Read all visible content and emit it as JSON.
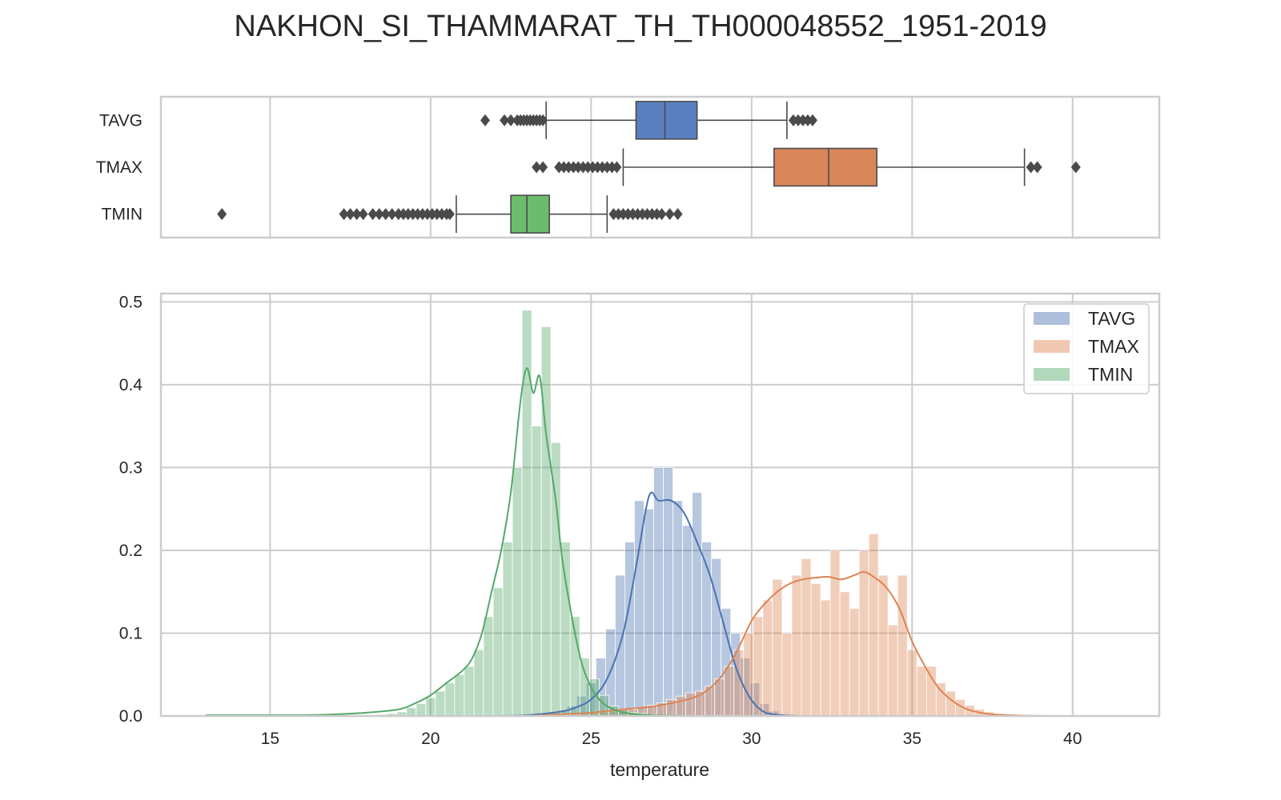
{
  "title": "NAKHON_SI_THAMMARAT_TH_TH000048552_1951-2019",
  "colors": {
    "TAVG": "#4c72b0",
    "TMAX": "#dd8452",
    "TMIN": "#55a868",
    "TAVG_box": "#5a7fc1",
    "TMAX_box": "#d9865a",
    "TMIN_box": "#6bbd6b",
    "grid": "#cccccc",
    "whisker": "#4a4a4a"
  },
  "chart_data": [
    {
      "type": "box",
      "categories": [
        "TAVG",
        "TMAX",
        "TMIN"
      ],
      "xlim": [
        11.6,
        42.7
      ],
      "grid": true,
      "boxes": [
        {
          "name": "TAVG",
          "q1": 26.4,
          "median": 27.3,
          "q3": 28.3,
          "whisker_low": 23.6,
          "whisker_high": 31.1,
          "outliers": [
            21.7,
            22.3,
            22.5,
            22.7,
            22.8,
            22.9,
            23.0,
            23.1,
            23.2,
            23.3,
            23.4,
            23.5,
            31.3,
            31.45,
            31.6,
            31.75,
            31.9
          ]
        },
        {
          "name": "TMAX",
          "q1": 30.7,
          "median": 32.4,
          "q3": 33.9,
          "whisker_low": 26.0,
          "whisker_high": 38.5,
          "outliers": [
            23.3,
            23.5,
            24.0,
            24.15,
            24.3,
            24.45,
            24.6,
            24.75,
            24.9,
            25.05,
            25.2,
            25.35,
            25.5,
            25.65,
            25.8,
            38.7,
            38.9,
            40.1
          ]
        },
        {
          "name": "TMIN",
          "q1": 22.5,
          "median": 23.0,
          "q3": 23.7,
          "whisker_low": 20.8,
          "whisker_high": 25.5,
          "outliers": [
            13.5,
            17.3,
            17.5,
            17.7,
            17.9,
            18.2,
            18.4,
            18.6,
            18.8,
            19.0,
            19.15,
            19.3,
            19.45,
            19.6,
            19.75,
            19.9,
            20.05,
            20.2,
            20.35,
            20.5,
            20.6,
            25.7,
            25.85,
            26.0,
            26.15,
            26.3,
            26.45,
            26.6,
            26.75,
            26.9,
            27.05,
            27.2,
            27.45,
            27.7
          ]
        }
      ]
    },
    {
      "type": "histogram",
      "xlabel": "temperature",
      "xlim": [
        11.6,
        42.7
      ],
      "ylim": [
        0,
        0.51
      ],
      "x_ticks": [
        15,
        20,
        25,
        30,
        35,
        40
      ],
      "y_ticks": [
        0.0,
        0.1,
        0.2,
        0.3,
        0.4,
        0.5
      ],
      "y_tick_labels": [
        "0.0",
        "0.1",
        "0.2",
        "0.3",
        "0.4",
        "0.5"
      ],
      "grid": true,
      "legend_position": "top-right",
      "series": [
        {
          "name": "TAVG",
          "bins": [
            [
              22.6,
              0.0005
            ],
            [
              22.9,
              0.001
            ],
            [
              23.2,
              0.0015
            ],
            [
              23.5,
              0.002
            ],
            [
              23.8,
              0.004
            ],
            [
              24.1,
              0.007
            ],
            [
              24.4,
              0.012
            ],
            [
              24.7,
              0.024
            ],
            [
              25.0,
              0.04
            ],
            [
              25.3,
              0.07
            ],
            [
              25.6,
              0.105
            ],
            [
              25.9,
              0.17
            ],
            [
              26.2,
              0.21
            ],
            [
              26.5,
              0.26
            ],
            [
              26.8,
              0.25
            ],
            [
              27.1,
              0.3
            ],
            [
              27.4,
              0.3
            ],
            [
              27.7,
              0.26
            ],
            [
              28.0,
              0.23
            ],
            [
              28.3,
              0.27
            ],
            [
              28.6,
              0.21
            ],
            [
              28.9,
              0.19
            ],
            [
              29.2,
              0.13
            ],
            [
              29.5,
              0.1
            ],
            [
              29.8,
              0.07
            ],
            [
              30.1,
              0.04
            ],
            [
              30.4,
              0.015
            ],
            [
              30.7,
              0.006
            ],
            [
              31.0,
              0.002
            ],
            [
              31.3,
              0.001
            ]
          ],
          "kde": [
            [
              22.0,
              0
            ],
            [
              23.0,
              0.001
            ],
            [
              24.0,
              0.005
            ],
            [
              24.5,
              0.01
            ],
            [
              25.0,
              0.02
            ],
            [
              25.5,
              0.045
            ],
            [
              26.0,
              0.1
            ],
            [
              26.4,
              0.18
            ],
            [
              26.8,
              0.265
            ],
            [
              27.1,
              0.26
            ],
            [
              27.5,
              0.26
            ],
            [
              27.9,
              0.245
            ],
            [
              28.3,
              0.21
            ],
            [
              28.7,
              0.17
            ],
            [
              29.1,
              0.115
            ],
            [
              29.5,
              0.06
            ],
            [
              29.9,
              0.025
            ],
            [
              30.3,
              0.007
            ],
            [
              30.7,
              0.002
            ],
            [
              31.5,
              0
            ]
          ]
        },
        {
          "name": "TMAX",
          "bins": [
            [
              23.3,
              0.0005
            ],
            [
              23.6,
              0.0008
            ],
            [
              23.9,
              0.001
            ],
            [
              24.2,
              0.0015
            ],
            [
              24.5,
              0.002
            ],
            [
              24.8,
              0.003
            ],
            [
              25.1,
              0.004
            ],
            [
              25.4,
              0.005
            ],
            [
              25.7,
              0.006
            ],
            [
              26.0,
              0.007
            ],
            [
              26.3,
              0.008
            ],
            [
              26.6,
              0.01
            ],
            [
              26.9,
              0.013
            ],
            [
              27.2,
              0.016
            ],
            [
              27.5,
              0.02
            ],
            [
              27.8,
              0.024
            ],
            [
              28.1,
              0.028
            ],
            [
              28.4,
              0.03
            ],
            [
              28.7,
              0.036
            ],
            [
              29.0,
              0.045
            ],
            [
              29.3,
              0.06
            ],
            [
              29.6,
              0.08
            ],
            [
              29.9,
              0.1
            ],
            [
              30.2,
              0.12
            ],
            [
              30.5,
              0.14
            ],
            [
              30.8,
              0.165
            ],
            [
              31.1,
              0.1
            ],
            [
              31.4,
              0.17
            ],
            [
              31.7,
              0.19
            ],
            [
              32.0,
              0.16
            ],
            [
              32.3,
              0.14
            ],
            [
              32.6,
              0.2
            ],
            [
              32.9,
              0.15
            ],
            [
              33.2,
              0.13
            ],
            [
              33.5,
              0.2
            ],
            [
              33.8,
              0.22
            ],
            [
              34.1,
              0.17
            ],
            [
              34.4,
              0.11
            ],
            [
              34.7,
              0.17
            ],
            [
              35.0,
              0.08
            ],
            [
              35.3,
              0.06
            ],
            [
              35.6,
              0.06
            ],
            [
              35.9,
              0.04
            ],
            [
              36.2,
              0.03
            ],
            [
              36.5,
              0.02
            ],
            [
              36.8,
              0.013
            ],
            [
              37.1,
              0.008
            ],
            [
              37.4,
              0.005
            ],
            [
              37.7,
              0.003
            ],
            [
              38.0,
              0.002
            ],
            [
              38.3,
              0.001
            ]
          ],
          "kde": [
            [
              23.0,
              0
            ],
            [
              24.0,
              0.002
            ],
            [
              25.0,
              0.004
            ],
            [
              26.0,
              0.008
            ],
            [
              27.0,
              0.012
            ],
            [
              28.0,
              0.02
            ],
            [
              28.5,
              0.028
            ],
            [
              29.0,
              0.045
            ],
            [
              29.5,
              0.075
            ],
            [
              30.0,
              0.115
            ],
            [
              30.4,
              0.135
            ],
            [
              30.8,
              0.15
            ],
            [
              31.2,
              0.16
            ],
            [
              31.6,
              0.165
            ],
            [
              32.0,
              0.167
            ],
            [
              32.4,
              0.168
            ],
            [
              32.8,
              0.165
            ],
            [
              33.2,
              0.17
            ],
            [
              33.5,
              0.174
            ],
            [
              33.8,
              0.168
            ],
            [
              34.2,
              0.155
            ],
            [
              34.6,
              0.13
            ],
            [
              35.0,
              0.09
            ],
            [
              35.4,
              0.06
            ],
            [
              35.8,
              0.035
            ],
            [
              36.2,
              0.02
            ],
            [
              36.6,
              0.01
            ],
            [
              37.0,
              0.005
            ],
            [
              37.5,
              0.002
            ],
            [
              38.5,
              0.0005
            ],
            [
              39.5,
              0
            ]
          ]
        },
        {
          "name": "TMIN",
          "bins": [
            [
              17.3,
              0.0005
            ],
            [
              17.6,
              0.0008
            ],
            [
              17.9,
              0.001
            ],
            [
              18.2,
              0.0015
            ],
            [
              18.5,
              0.002
            ],
            [
              18.8,
              0.003
            ],
            [
              19.1,
              0.005
            ],
            [
              19.4,
              0.01
            ],
            [
              19.7,
              0.015
            ],
            [
              20.0,
              0.022
            ],
            [
              20.3,
              0.03
            ],
            [
              20.6,
              0.04
            ],
            [
              20.9,
              0.05
            ],
            [
              21.2,
              0.06
            ],
            [
              21.5,
              0.08
            ],
            [
              21.8,
              0.12
            ],
            [
              22.1,
              0.155
            ],
            [
              22.4,
              0.21
            ],
            [
              22.7,
              0.3
            ],
            [
              23.0,
              0.49
            ],
            [
              23.3,
              0.35
            ],
            [
              23.6,
              0.47
            ],
            [
              23.9,
              0.33
            ],
            [
              24.2,
              0.21
            ],
            [
              24.5,
              0.12
            ],
            [
              24.8,
              0.07
            ],
            [
              25.1,
              0.045
            ],
            [
              25.4,
              0.025
            ],
            [
              25.7,
              0.012
            ],
            [
              26.0,
              0.008
            ],
            [
              26.3,
              0.004
            ],
            [
              26.6,
              0.003
            ],
            [
              26.9,
              0.002
            ],
            [
              27.2,
              0.001
            ]
          ],
          "kde": [
            [
              13.0,
              0.001
            ],
            [
              14.0,
              0.001
            ],
            [
              16.0,
              0.001
            ],
            [
              17.0,
              0.002
            ],
            [
              18.0,
              0.004
            ],
            [
              19.0,
              0.008
            ],
            [
              19.5,
              0.015
            ],
            [
              20.0,
              0.025
            ],
            [
              20.5,
              0.04
            ],
            [
              21.0,
              0.055
            ],
            [
              21.3,
              0.07
            ],
            [
              21.6,
              0.1
            ],
            [
              21.9,
              0.15
            ],
            [
              22.2,
              0.2
            ],
            [
              22.5,
              0.27
            ],
            [
              22.8,
              0.38
            ],
            [
              23.0,
              0.42
            ],
            [
              23.2,
              0.39
            ],
            [
              23.4,
              0.41
            ],
            [
              23.6,
              0.34
            ],
            [
              23.9,
              0.26
            ],
            [
              24.1,
              0.19
            ],
            [
              24.4,
              0.12
            ],
            [
              24.7,
              0.065
            ],
            [
              25.0,
              0.035
            ],
            [
              25.3,
              0.018
            ],
            [
              25.7,
              0.008
            ],
            [
              26.2,
              0.003
            ],
            [
              27.0,
              0.001
            ],
            [
              28.0,
              0
            ]
          ]
        }
      ]
    }
  ]
}
